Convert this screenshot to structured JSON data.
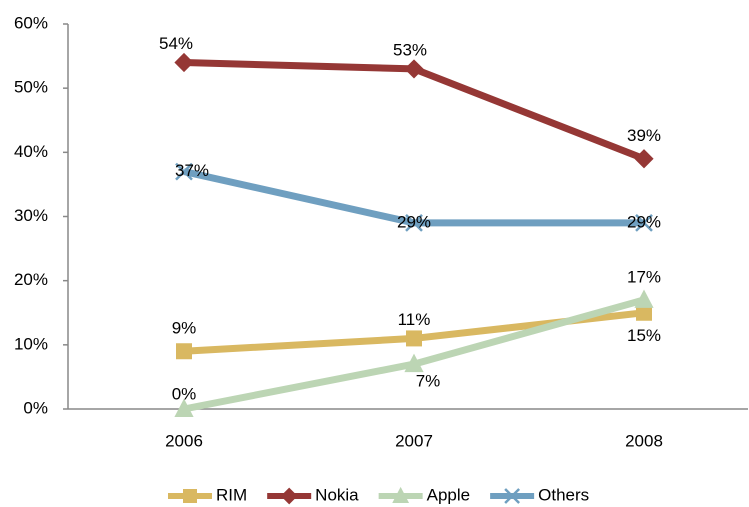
{
  "chart_data": {
    "type": "line",
    "categories": [
      "2006",
      "2007",
      "2008"
    ],
    "series": [
      {
        "name": "RIM",
        "color": "#d9b861",
        "marker": "square",
        "values": [
          9,
          11,
          15
        ],
        "value_labels": [
          "9%",
          "11%",
          "15%"
        ]
      },
      {
        "name": "Nokia",
        "color": "#953735",
        "marker": "diamond",
        "values": [
          54,
          53,
          39
        ],
        "value_labels": [
          "54%",
          "53%",
          "39%"
        ]
      },
      {
        "name": "Apple",
        "color": "#bcd5b4",
        "marker": "triangle",
        "values": [
          0,
          7,
          17
        ],
        "value_labels": [
          "0%",
          "7%",
          "17%"
        ]
      },
      {
        "name": "Others",
        "color": "#6f9fc0",
        "marker": "x",
        "values": [
          37,
          29,
          29
        ],
        "value_labels": [
          "37%",
          "29%",
          "29%"
        ]
      }
    ],
    "ylim": [
      0,
      60
    ],
    "yticks": [
      {
        "value": 0,
        "label": "0%"
      },
      {
        "value": 10,
        "label": "10%"
      },
      {
        "value": 20,
        "label": "20%"
      },
      {
        "value": 30,
        "label": "30%"
      },
      {
        "value": 40,
        "label": "40%"
      },
      {
        "value": 50,
        "label": "50%"
      },
      {
        "value": 60,
        "label": "60%"
      }
    ],
    "grid": false,
    "legend": "bottom"
  }
}
